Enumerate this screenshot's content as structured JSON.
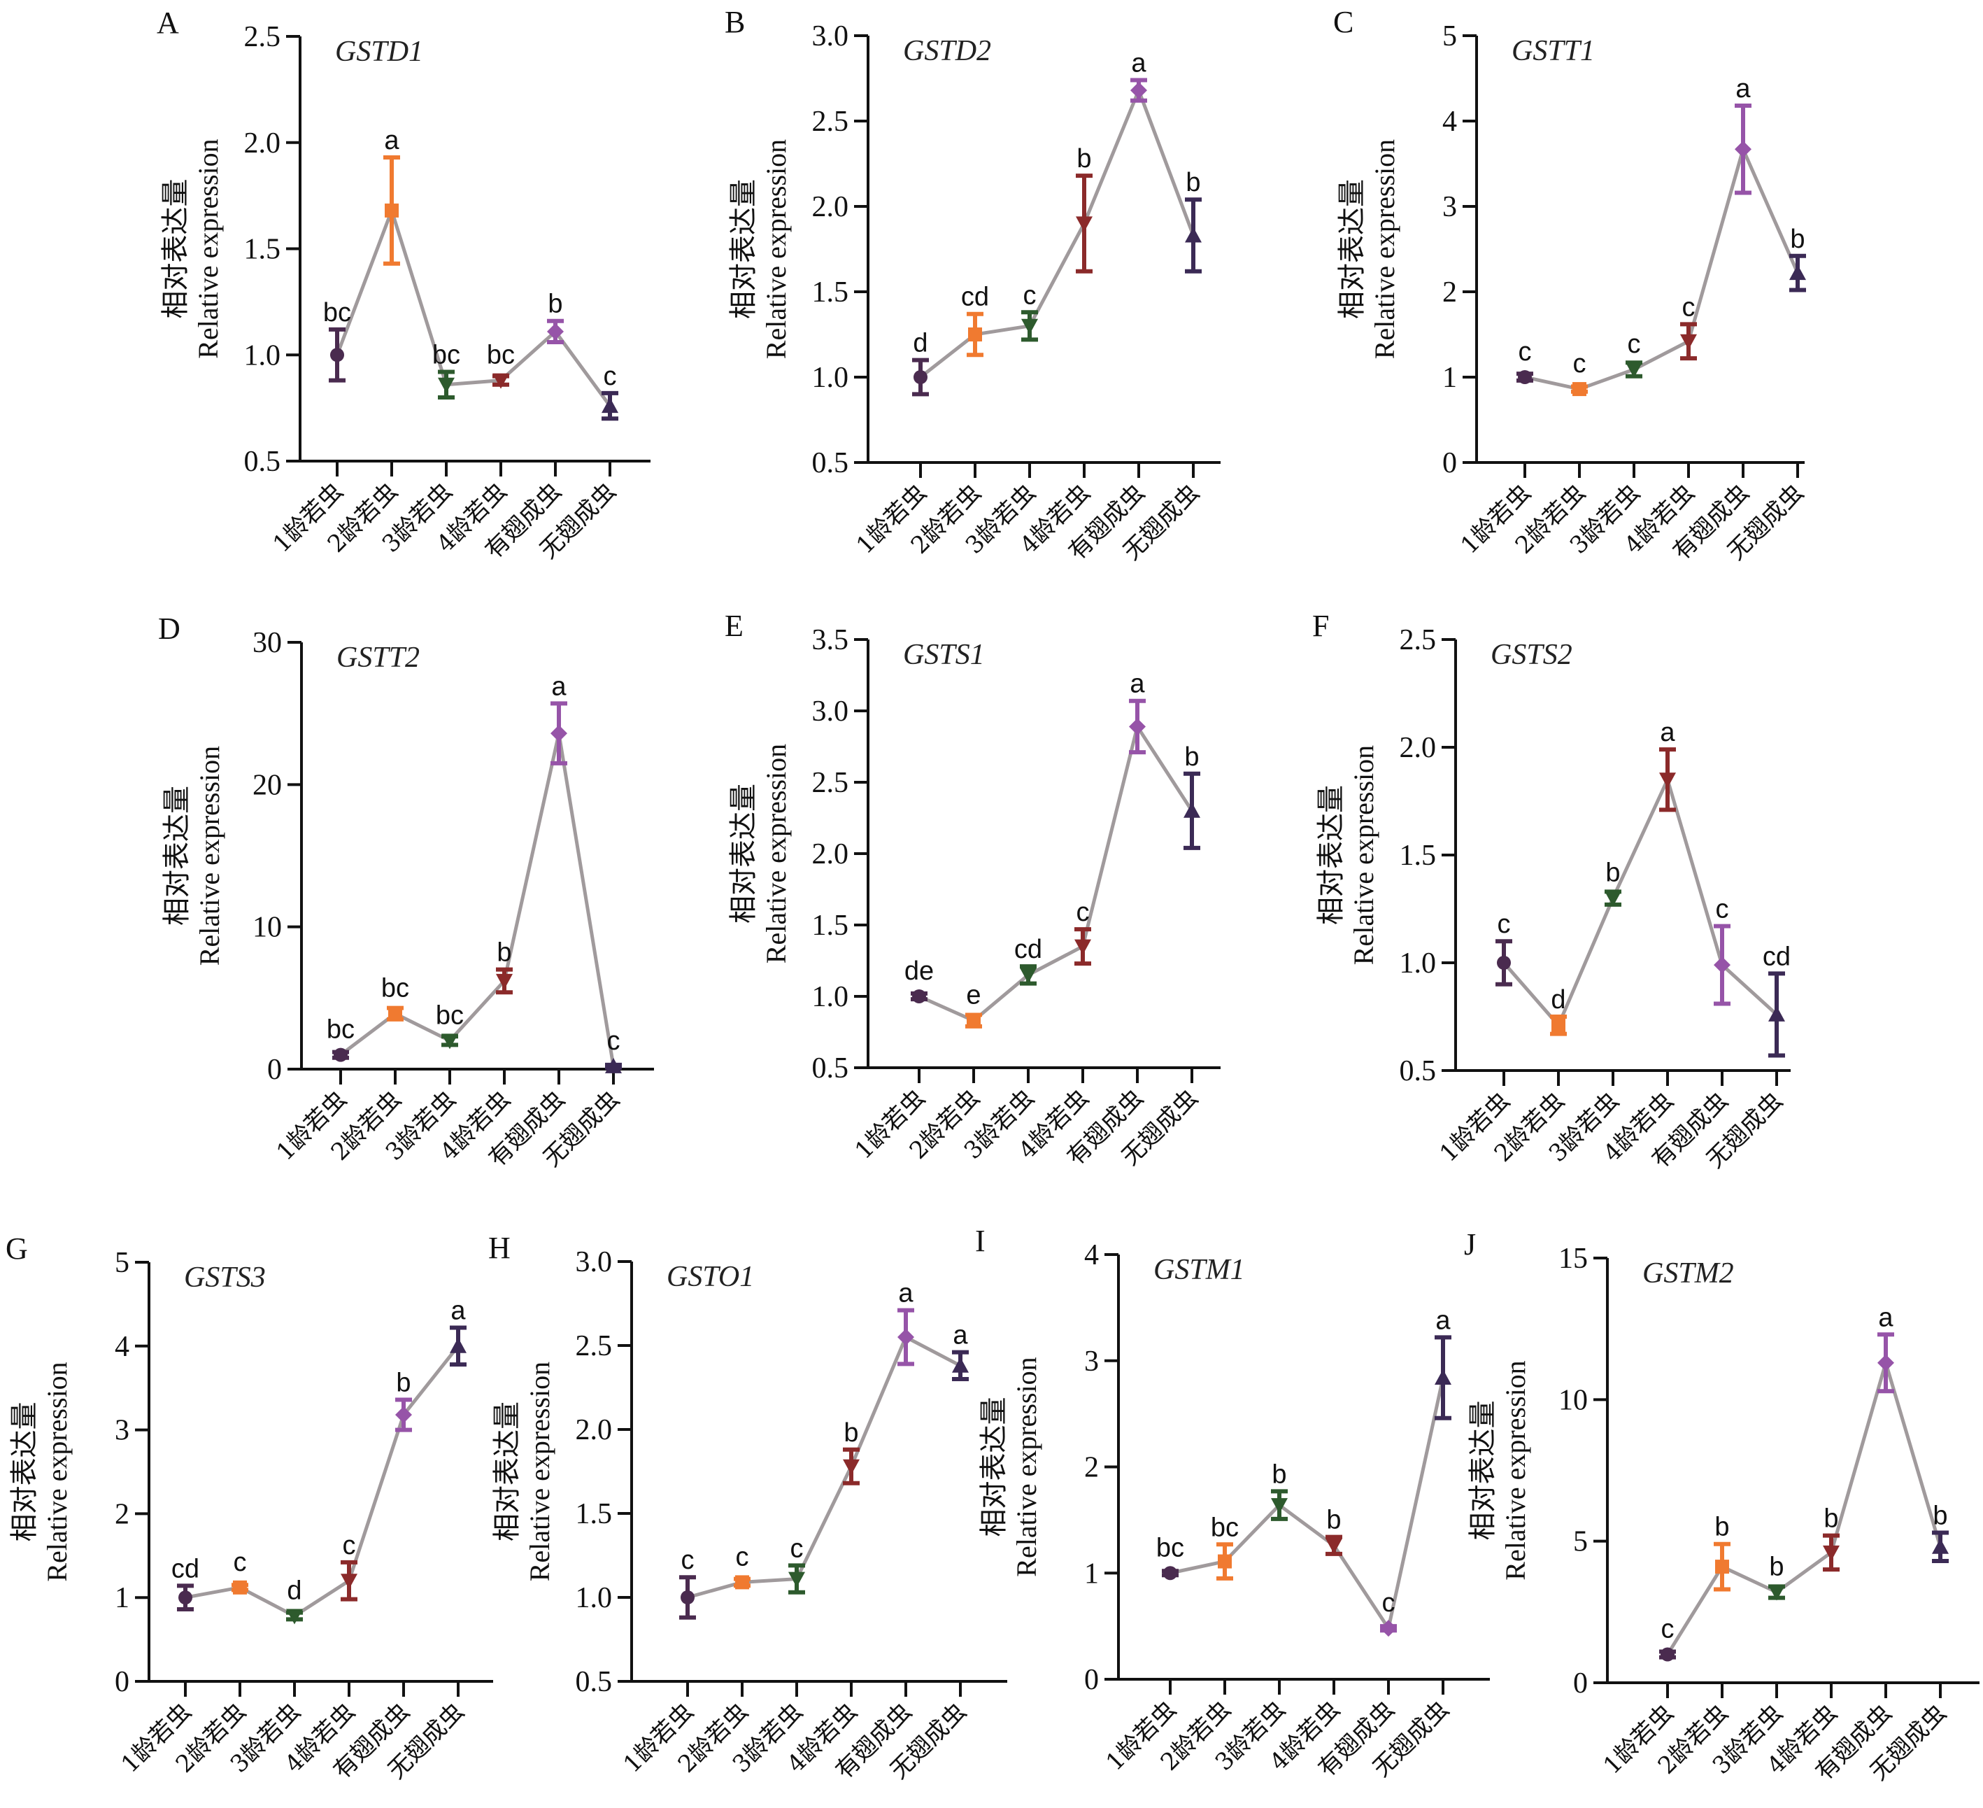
{
  "figure": {
    "categories": [
      "1龄若虫",
      "2龄若虫",
      "3龄若虫",
      "4龄若虫",
      "有翅成虫",
      "无翅成虫"
    ],
    "ylabel_cn": "相对表达量",
    "ylabel_en": "Relative expression",
    "series_colors": [
      "#4a2b4f",
      "#f07a30",
      "#2d5a2d",
      "#8b2a2a",
      "#9654a8",
      "#3b2a55"
    ],
    "series_markers": [
      "circle",
      "square",
      "triangle-down",
      "triangle-down",
      "diamond",
      "triangle-up"
    ],
    "line_color": "#a09a9c"
  },
  "chart_data": [
    {
      "panel": "A",
      "type": "line",
      "title": "GSTD1",
      "ylim": [
        0.5,
        2.5
      ],
      "yticks": [
        "0.5",
        "1.0",
        "1.5",
        "2.0",
        "2.5"
      ],
      "ytick_values": [
        0.5,
        1.0,
        1.5,
        2.0,
        2.5
      ],
      "values": [
        1.0,
        1.68,
        0.86,
        0.88,
        1.11,
        0.76
      ],
      "errors": [
        0.12,
        0.25,
        0.06,
        0.02,
        0.05,
        0.06
      ],
      "letters": [
        "bc",
        "a",
        "bc",
        "bc",
        "b",
        "c"
      ]
    },
    {
      "panel": "B",
      "type": "line",
      "title": "GSTD2",
      "ylim": [
        0.5,
        3.0
      ],
      "yticks": [
        "0.5",
        "1.0",
        "1.5",
        "2.0",
        "2.5",
        "3.0"
      ],
      "ytick_values": [
        0.5,
        1.0,
        1.5,
        2.0,
        2.5,
        3.0
      ],
      "values": [
        1.0,
        1.25,
        1.3,
        1.9,
        2.68,
        1.83
      ],
      "errors": [
        0.1,
        0.12,
        0.08,
        0.28,
        0.06,
        0.21
      ],
      "letters": [
        "d",
        "cd",
        "c",
        "b",
        "a",
        "b"
      ]
    },
    {
      "panel": "C",
      "type": "line",
      "title": "GSTT1",
      "ylim": [
        0,
        5
      ],
      "yticks": [
        "0",
        "1",
        "2",
        "3",
        "4",
        "5"
      ],
      "ytick_values": [
        0,
        1,
        2,
        3,
        4,
        5
      ],
      "values": [
        1.0,
        0.86,
        1.09,
        1.42,
        3.67,
        2.22
      ],
      "errors": [
        0.04,
        0.03,
        0.08,
        0.2,
        0.51,
        0.2
      ],
      "letters": [
        "c",
        "c",
        "c",
        "c",
        "a",
        "b"
      ]
    },
    {
      "panel": "D",
      "type": "line",
      "title": "GSTT2",
      "ylim": [
        0,
        30
      ],
      "yticks": [
        "0",
        "10",
        "20",
        "30"
      ],
      "ytick_values": [
        0,
        10,
        20,
        30
      ],
      "values": [
        1.0,
        3.9,
        2.0,
        6.2,
        23.6,
        0.2
      ],
      "errors": [
        0.2,
        0.4,
        0.3,
        0.8,
        2.1,
        0.1
      ],
      "letters": [
        "bc",
        "bc",
        "bc",
        "b",
        "a",
        "c"
      ]
    },
    {
      "panel": "E",
      "type": "line",
      "title": "GSTS1",
      "ylim": [
        0.5,
        3.5
      ],
      "yticks": [
        "0.5",
        "1.0",
        "1.5",
        "2.0",
        "2.5",
        "3.0",
        "3.5"
      ],
      "ytick_values": [
        0.5,
        1.0,
        1.5,
        2.0,
        2.5,
        3.0,
        3.5
      ],
      "values": [
        1.0,
        0.83,
        1.15,
        1.35,
        2.89,
        2.3
      ],
      "errors": [
        0.02,
        0.04,
        0.06,
        0.12,
        0.18,
        0.26
      ],
      "letters": [
        "de",
        "e",
        "cd",
        "c",
        "a",
        "b"
      ]
    },
    {
      "panel": "F",
      "type": "line",
      "title": "GSTS2",
      "ylim": [
        0.5,
        2.5
      ],
      "yticks": [
        "0.5",
        "1.0",
        "1.5",
        "2.0",
        "2.5"
      ],
      "ytick_values": [
        0.5,
        1.0,
        1.5,
        2.0,
        2.5
      ],
      "values": [
        1.0,
        0.71,
        1.3,
        1.85,
        0.99,
        0.76
      ],
      "errors": [
        0.1,
        0.04,
        0.03,
        0.14,
        0.18,
        0.19
      ],
      "letters": [
        "c",
        "d",
        "b",
        "a",
        "c",
        "cd"
      ]
    },
    {
      "panel": "G",
      "type": "line",
      "title": "GSTS3",
      "ylim": [
        0,
        5
      ],
      "yticks": [
        "0",
        "1",
        "2",
        "3",
        "4",
        "5"
      ],
      "ytick_values": [
        0,
        1,
        2,
        3,
        4,
        5
      ],
      "values": [
        1.0,
        1.12,
        0.78,
        1.2,
        3.18,
        4.0
      ],
      "errors": [
        0.14,
        0.03,
        0.04,
        0.22,
        0.18,
        0.22
      ],
      "letters": [
        "cd",
        "c",
        "d",
        "c",
        "b",
        "a"
      ]
    },
    {
      "panel": "H",
      "type": "line",
      "title": "GSTO1",
      "ylim": [
        0.5,
        3.0
      ],
      "yticks": [
        "0.5",
        "1.0",
        "1.5",
        "2.0",
        "2.5",
        "3.0"
      ],
      "ytick_values": [
        0.5,
        1.0,
        1.5,
        2.0,
        2.5,
        3.0
      ],
      "values": [
        1.0,
        1.09,
        1.11,
        1.78,
        2.55,
        2.38
      ],
      "errors": [
        0.12,
        0.02,
        0.08,
        0.1,
        0.16,
        0.08
      ],
      "letters": [
        "c",
        "c",
        "c",
        "b",
        "a",
        "a"
      ]
    },
    {
      "panel": "I",
      "type": "line",
      "title": "GSTM1",
      "ylim": [
        0,
        4
      ],
      "yticks": [
        "0",
        "1",
        "2",
        "3",
        "4"
      ],
      "ytick_values": [
        0,
        1,
        2,
        3,
        4
      ],
      "values": [
        1.0,
        1.11,
        1.64,
        1.26,
        0.48,
        2.84
      ],
      "errors": [
        0.02,
        0.16,
        0.13,
        0.08,
        0.02,
        0.38
      ],
      "letters": [
        "bc",
        "bc",
        "b",
        "b",
        "c",
        "a"
      ]
    },
    {
      "panel": "J",
      "type": "line",
      "title": "GSTM2",
      "ylim": [
        0,
        15
      ],
      "yticks": [
        "0",
        "5",
        "10",
        "15"
      ],
      "ytick_values": [
        0,
        5,
        10,
        15
      ],
      "values": [
        1.0,
        4.1,
        3.2,
        4.6,
        11.3,
        4.8
      ],
      "errors": [
        0.1,
        0.8,
        0.2,
        0.6,
        1.0,
        0.5
      ],
      "letters": [
        "c",
        "b",
        "b",
        "b",
        "a",
        "b"
      ]
    }
  ]
}
